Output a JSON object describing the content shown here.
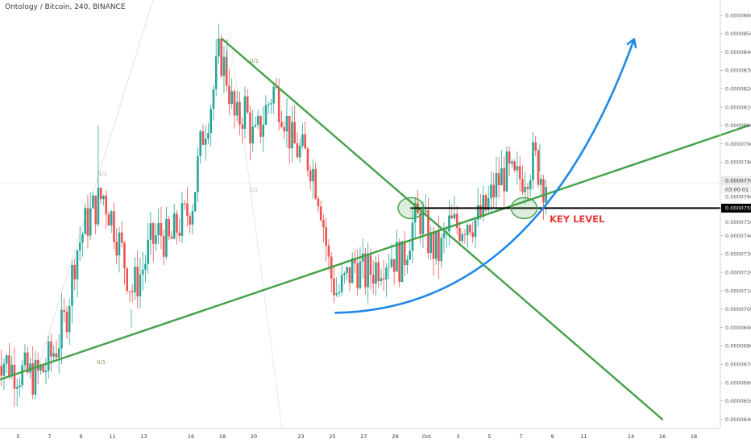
{
  "header": {
    "title": "Ontology / Bitcoin, 240, BINANCE"
  },
  "colors": {
    "up": "#26a69a",
    "down": "#ef5350",
    "trendline": "#43a047",
    "curve": "#1e88e5",
    "annotation": "#e53935",
    "key_level": "#000000",
    "fib_faint": "#d7c4bd"
  },
  "chart_data": {
    "type": "candlestick",
    "symbol": "Ontology / Bitcoin",
    "interval": "240",
    "exchange": "BINANCE",
    "ylim": [
      6.36e-05,
      8.66e-05
    ],
    "y_ticks": [
      "0.0000860",
      "0.0000850",
      "0.0000840",
      "0.0000830",
      "0.0000820",
      "0.0000810",
      "0.0000800",
      "0.0000790",
      "0.0000780",
      "0.0000770",
      "0.0000760",
      "0.0000750",
      "0.0000740",
      "0.0000730",
      "0.0000720",
      "0.0000710",
      "0.0000700",
      "0.0000690",
      "0.0000680",
      "0.0000670",
      "0.0000660",
      "0.0000650",
      "0.0000640"
    ],
    "y_tick_values": [
      8.6e-05,
      8.5e-05,
      8.4e-05,
      8.3e-05,
      8.2e-05,
      8.1e-05,
      8e-05,
      7.9e-05,
      7.8e-05,
      7.7e-05,
      7.6e-05,
      7.5e-05,
      7.4e-05,
      7.3e-05,
      7.2e-05,
      7.1e-05,
      7e-05,
      6.9e-05,
      6.8e-05,
      6.7e-05,
      6.6e-05,
      6.5e-05,
      6.4e-05
    ],
    "x_ticks": [
      {
        "label": "5",
        "day": 5
      },
      {
        "label": "7",
        "day": 7
      },
      {
        "label": "9",
        "day": 9
      },
      {
        "label": "11",
        "day": 11
      },
      {
        "label": "13",
        "day": 13
      },
      {
        "label": "16",
        "day": 16
      },
      {
        "label": "18",
        "day": 18
      },
      {
        "label": "20",
        "day": 20
      },
      {
        "label": "23",
        "day": 23
      },
      {
        "label": "25",
        "day": 25
      },
      {
        "label": "27",
        "day": 27
      },
      {
        "label": "29",
        "day": 29
      },
      {
        "label": "Oct",
        "day": 31
      },
      {
        "label": "3",
        "day": 33
      },
      {
        "label": "5",
        "day": 35
      },
      {
        "label": "7",
        "day": 37
      },
      {
        "label": "9",
        "day": 39
      },
      {
        "label": "11",
        "day": 41
      },
      {
        "label": "14",
        "day": 44
      },
      {
        "label": "16",
        "day": 46
      },
      {
        "label": "18",
        "day": 48
      }
    ],
    "price_tags": {
      "current": "0.0000770",
      "countdown": "03:00:01",
      "key_level": "0.0000755"
    },
    "key_level_value": 7.55e-05,
    "current_price": 7.7e-05,
    "annotations": {
      "key_level_text": "KEY LEVEL"
    },
    "fib_labels": [
      "0/1",
      "0/1",
      "1/1",
      "2/1"
    ],
    "anchors": [
      {
        "day": 3.6,
        "price": 6.78e-05
      },
      {
        "day": 4.8,
        "price": 6.68e-05
      },
      {
        "day": 5.5,
        "price": 6.65e-05
      },
      {
        "day": 6.3,
        "price": 6.63e-05
      },
      {
        "day": 6.9,
        "price": 6.68e-05
      },
      {
        "day": 7.6,
        "price": 6.8e-05
      },
      {
        "day": 8.2,
        "price": 6.95e-05
      },
      {
        "day": 8.8,
        "price": 7.3e-05
      },
      {
        "day": 9.4,
        "price": 7.45e-05
      },
      {
        "day": 10.0,
        "price": 7.55e-05
      },
      {
        "day": 10.6,
        "price": 7.62e-05
      },
      {
        "day": 11.2,
        "price": 7.48e-05
      },
      {
        "day": 11.8,
        "price": 7.3e-05
      },
      {
        "day": 12.4,
        "price": 7.1e-05
      },
      {
        "day": 13.0,
        "price": 7.2e-05
      },
      {
        "day": 13.6,
        "price": 7.35e-05
      },
      {
        "day": 14.2,
        "price": 7.42e-05
      },
      {
        "day": 14.8,
        "price": 7.35e-05
      },
      {
        "day": 15.3,
        "price": 7.45e-05
      },
      {
        "day": 15.8,
        "price": 7.5e-05
      },
      {
        "day": 16.3,
        "price": 7.6e-05
      },
      {
        "day": 16.9,
        "price": 7.95e-05
      },
      {
        "day": 17.5,
        "price": 8.15e-05
      },
      {
        "day": 18.0,
        "price": 8.4e-05
      },
      {
        "day": 18.5,
        "price": 8.25e-05
      },
      {
        "day": 19.0,
        "price": 8e-05
      },
      {
        "day": 19.6,
        "price": 8.1e-05
      },
      {
        "day": 20.2,
        "price": 7.9e-05
      },
      {
        "day": 20.8,
        "price": 8.05e-05
      },
      {
        "day": 21.4,
        "price": 8.2e-05
      },
      {
        "day": 22.0,
        "price": 8.1e-05
      },
      {
        "day": 22.6,
        "price": 7.9e-05
      },
      {
        "day": 23.2,
        "price": 7.85e-05
      },
      {
        "day": 23.8,
        "price": 7.8e-05
      },
      {
        "day": 24.4,
        "price": 7.6e-05
      },
      {
        "day": 25.0,
        "price": 7.2e-05
      },
      {
        "day": 25.5,
        "price": 7.08e-05
      },
      {
        "day": 26.0,
        "price": 7.15e-05
      },
      {
        "day": 26.6,
        "price": 7.25e-05
      },
      {
        "day": 27.2,
        "price": 7.18e-05
      },
      {
        "day": 27.8,
        "price": 7.22e-05
      },
      {
        "day": 28.4,
        "price": 7.28e-05
      },
      {
        "day": 29.0,
        "price": 7.3e-05
      },
      {
        "day": 29.6,
        "price": 7.25e-05
      },
      {
        "day": 30.2,
        "price": 7.45e-05
      },
      {
        "day": 30.8,
        "price": 7.5e-05
      },
      {
        "day": 31.4,
        "price": 7.35e-05
      },
      {
        "day": 32.0,
        "price": 7.3e-05
      },
      {
        "day": 32.6,
        "price": 7.45e-05
      },
      {
        "day": 33.2,
        "price": 7.45e-05
      },
      {
        "day": 33.8,
        "price": 7.5e-05
      },
      {
        "day": 34.4,
        "price": 7.48e-05
      },
      {
        "day": 35.0,
        "price": 7.55e-05
      },
      {
        "day": 35.6,
        "price": 7.68e-05
      },
      {
        "day": 36.2,
        "price": 7.75e-05
      },
      {
        "day": 36.8,
        "price": 7.68e-05
      },
      {
        "day": 37.4,
        "price": 7.75e-05
      },
      {
        "day": 38.0,
        "price": 7.82e-05
      },
      {
        "day": 38.6,
        "price": 7.7e-05
      }
    ],
    "trendlines": [
      {
        "name": "ascending",
        "from": {
          "day": 3.6,
          "price": 6.61e-05
        },
        "to": {
          "day": 51.5,
          "price": 8e-05
        }
      },
      {
        "name": "descending",
        "from": {
          "day": 18.0,
          "price": 8.47e-05
        },
        "to": {
          "day": 46.0,
          "price": 6.4e-05
        }
      },
      {
        "name": "key-level",
        "from": {
          "day": 30.0,
          "price": 7.55e-05
        },
        "to": {
          "day": 51.5,
          "price": 7.55e-05
        }
      }
    ],
    "curve": {
      "from": {
        "day": 25.2,
        "price": 6.98e-05
      },
      "control": {
        "day": 38,
        "price": 7e-05
      },
      "to": {
        "day": 44.2,
        "price": 8.47e-05
      }
    },
    "circles": [
      {
        "day": 30.0,
        "price": 7.55e-05
      },
      {
        "day": 37.2,
        "price": 7.55e-05
      }
    ],
    "grid": false,
    "legend": "none"
  }
}
